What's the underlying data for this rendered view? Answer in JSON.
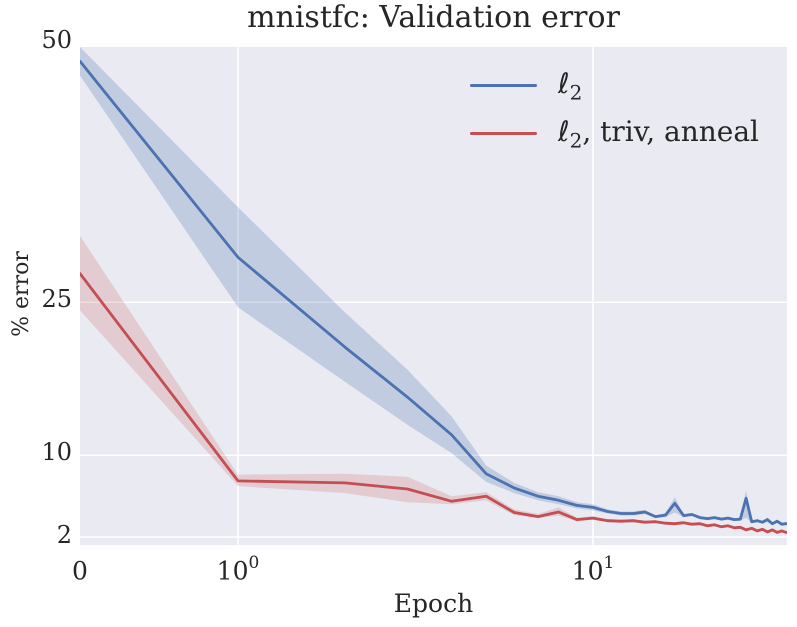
{
  "colors": {
    "background": "#ffffff",
    "plot_background": "#eaeaf2",
    "grid": "#ffffff",
    "text": "#262626",
    "series_blue": "#4C72B0",
    "series_red": "#C44E52"
  },
  "chart_data": {
    "type": "line",
    "title": "mnistfc: Validation error",
    "xlabel": "Epoch",
    "ylabel": "% error",
    "xscale": "symlog",
    "yscale": "linear",
    "xlim": [
      0,
      35
    ],
    "ylim": [
      2,
      50
    ],
    "grid": true,
    "legend_position": "upper right",
    "xticks": [
      {
        "value": 0,
        "base": "0",
        "exp": ""
      },
      {
        "value": 1,
        "base": "10",
        "exp": "0"
      },
      {
        "value": 10,
        "base": "10",
        "exp": "1"
      }
    ],
    "yticks": [
      {
        "value": 50,
        "label": "50"
      },
      {
        "value": 25,
        "label": "25"
      },
      {
        "value": 10,
        "label": "10"
      },
      {
        "value": 2,
        "label": "2"
      }
    ],
    "x": [
      0,
      1,
      2,
      3,
      4,
      5,
      6,
      7,
      8,
      9,
      10,
      11,
      12,
      13,
      14,
      15,
      16,
      17,
      18,
      19,
      20,
      21,
      22,
      23,
      24,
      25,
      26,
      27,
      28,
      29,
      30,
      31,
      32,
      33,
      34,
      35
    ],
    "series": [
      {
        "name": "ℓ₂",
        "label_parts": {
          "symbol": "ℓ",
          "sub": "2",
          "rest": ""
        },
        "color": "#4C72B0",
        "band_opacity": 0.25,
        "mean": [
          48.6,
          29.4,
          20.6,
          15.7,
          12.0,
          8.2,
          6.8,
          6.0,
          5.6,
          5.1,
          4.9,
          4.5,
          4.3,
          4.3,
          4.45,
          4.0,
          4.15,
          5.3,
          4.1,
          4.2,
          3.9,
          3.8,
          3.9,
          3.75,
          3.85,
          3.7,
          3.75,
          5.8,
          3.5,
          3.6,
          3.45,
          3.7,
          3.3,
          3.55,
          3.25,
          3.3
        ],
        "lower": [
          47.2,
          24.5,
          17.2,
          13.0,
          10.2,
          7.4,
          6.3,
          5.6,
          5.2,
          4.8,
          4.6,
          4.3,
          4.1,
          4.1,
          4.25,
          3.85,
          3.95,
          4.4,
          3.95,
          4.05,
          3.75,
          3.65,
          3.75,
          3.6,
          3.7,
          3.55,
          3.6,
          3.9,
          3.35,
          3.45,
          3.3,
          3.5,
          3.15,
          3.4,
          3.1,
          3.15
        ],
        "upper": [
          50.0,
          34.3,
          24.0,
          18.4,
          13.8,
          9.0,
          7.3,
          6.4,
          6.0,
          5.4,
          5.2,
          4.7,
          4.5,
          4.5,
          4.65,
          4.15,
          4.35,
          5.9,
          4.25,
          4.35,
          4.05,
          3.95,
          4.05,
          3.9,
          4.0,
          3.85,
          3.9,
          6.6,
          3.65,
          3.75,
          3.6,
          3.9,
          3.45,
          3.7,
          3.4,
          3.45
        ]
      },
      {
        "name": "ℓ₂, triv, anneal",
        "label_parts": {
          "symbol": "ℓ",
          "sub": "2",
          "rest": ", triv, anneal"
        },
        "color": "#C44E52",
        "band_opacity": 0.2,
        "mean": [
          27.8,
          7.5,
          7.3,
          6.7,
          5.5,
          6.0,
          4.4,
          4.0,
          4.45,
          3.7,
          3.85,
          3.6,
          3.55,
          3.6,
          3.45,
          3.5,
          3.35,
          3.3,
          3.4,
          3.25,
          3.3,
          3.1,
          3.2,
          3.0,
          3.1,
          2.9,
          2.95,
          2.7,
          2.85,
          2.6,
          2.75,
          2.5,
          2.7,
          2.45,
          2.6,
          2.45
        ],
        "lower": [
          24.2,
          7.0,
          6.3,
          5.4,
          5.2,
          5.6,
          4.15,
          3.85,
          4.1,
          3.55,
          3.7,
          3.45,
          3.4,
          3.45,
          3.3,
          3.35,
          3.2,
          3.15,
          3.25,
          3.1,
          3.15,
          2.95,
          3.05,
          2.85,
          2.95,
          2.75,
          2.8,
          2.55,
          2.7,
          2.45,
          2.6,
          2.35,
          2.55,
          2.3,
          2.45,
          2.3
        ],
        "upper": [
          31.5,
          8.1,
          8.2,
          7.9,
          6.0,
          6.4,
          4.7,
          4.25,
          4.9,
          3.9,
          4.05,
          3.75,
          3.7,
          3.75,
          3.6,
          3.65,
          3.5,
          3.45,
          3.55,
          3.4,
          3.45,
          3.25,
          3.35,
          3.15,
          3.25,
          3.05,
          3.1,
          2.85,
          3.0,
          2.75,
          2.9,
          2.65,
          2.85,
          2.6,
          2.75,
          2.6
        ]
      }
    ]
  }
}
